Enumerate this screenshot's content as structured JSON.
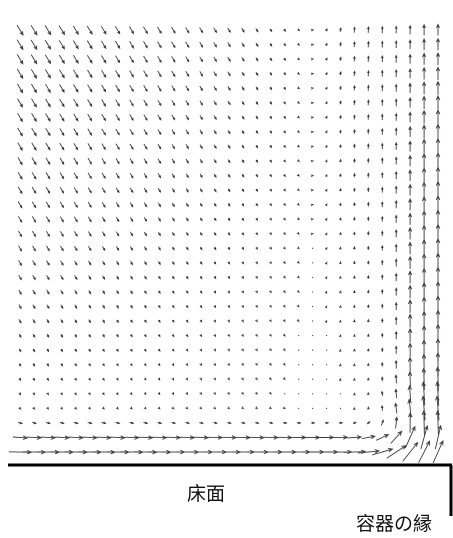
{
  "labels": {
    "floor": "床面",
    "container_edge": "容器の縁"
  },
  "colors": {
    "arrow": "#3a3a3a",
    "boundary": "#000000"
  },
  "figure": {
    "kind": "velocity vector field",
    "description_elements": [
      "arrow-field",
      "floor-wall",
      "container-edge-wall"
    ]
  }
}
